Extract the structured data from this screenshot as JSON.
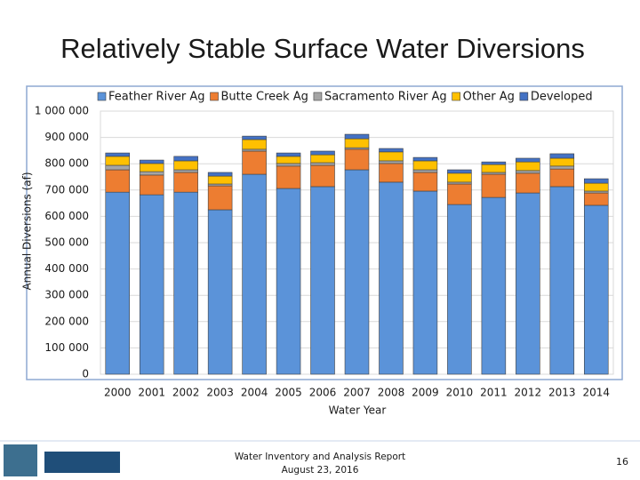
{
  "slide": {
    "title": "Relatively Stable Surface Water Diversions",
    "footer": [
      "Water Inventory and Analysis Report",
      "August 23, 2016"
    ],
    "page_number": 16
  },
  "chart_data": {
    "type": "stacked_bar",
    "x_label": "Water Year",
    "y_label": "Annual Diversions (af)",
    "categories": [
      "2000",
      "2001",
      "2002",
      "2003",
      "2004",
      "2005",
      "2006",
      "2007",
      "2008",
      "2009",
      "2010",
      "2011",
      "2012",
      "2013",
      "2014"
    ],
    "series": [
      {
        "name": "Feather River Ag",
        "color": "#5b93d9",
        "values": [
          692000,
          682000,
          692000,
          625000,
          760000,
          706000,
          713000,
          777000,
          730000,
          696000,
          645000,
          672000,
          689000,
          713000,
          642000
        ]
      },
      {
        "name": "Butte Creek Ag",
        "color": "#ed7d31",
        "values": [
          85000,
          75000,
          75000,
          91000,
          88000,
          85000,
          81000,
          78000,
          71000,
          71000,
          78000,
          88000,
          75000,
          67000,
          47000
        ]
      },
      {
        "name": "Sacramento River Ag",
        "color": "#a5a5a5",
        "values": [
          17000,
          13000,
          10000,
          7000,
          7000,
          10000,
          10000,
          6000,
          10000,
          10000,
          7000,
          7000,
          10000,
          11000,
          7000
        ]
      },
      {
        "name": "Other Ag",
        "color": "#ffc000",
        "values": [
          34000,
          31000,
          34000,
          30000,
          37000,
          27000,
          30000,
          34000,
          34000,
          34000,
          34000,
          30000,
          33000,
          30000,
          30000
        ]
      },
      {
        "name": "Developed",
        "color": "#4472c4",
        "values": [
          13000,
          13000,
          17000,
          14000,
          13000,
          13000,
          14000,
          17000,
          13000,
          13000,
          13000,
          10000,
          14000,
          17000,
          17000
        ]
      }
    ],
    "ylim": [
      0,
      1000000
    ],
    "yticks": [
      0,
      {
        "value": 100000,
        "label": "100 000"
      },
      {
        "value": 200000,
        "label": "200 000"
      },
      {
        "value": 300000,
        "label": "300 000"
      },
      {
        "value": 400000,
        "label": "400 000"
      },
      {
        "value": 500000,
        "label": "500 000"
      },
      {
        "value": 600000,
        "label": "600 000"
      },
      {
        "value": 700000,
        "label": "700 000"
      },
      {
        "value": 800000,
        "label": "800 000"
      },
      {
        "value": 900000,
        "label": "900 000"
      },
      {
        "value": 1000000,
        "label": "1 000 000"
      }
    ],
    "grid": true,
    "legend": "top"
  }
}
